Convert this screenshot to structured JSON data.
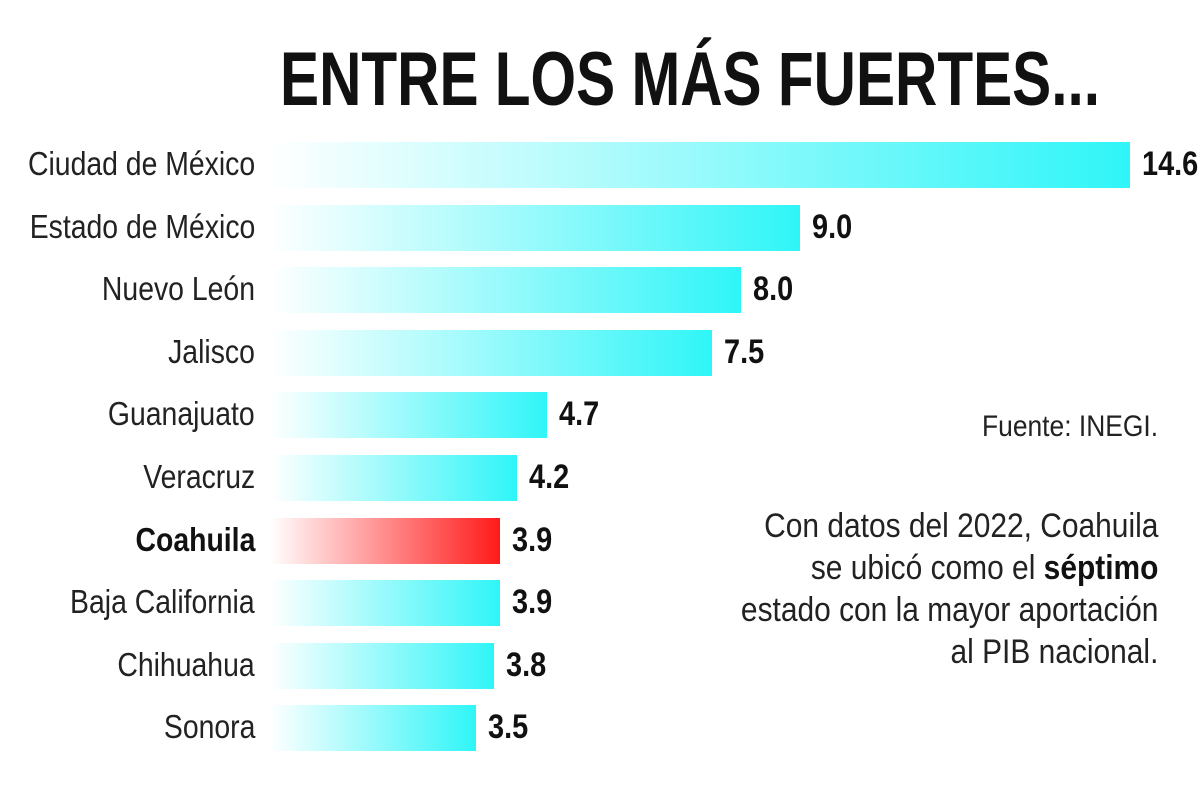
{
  "chart_data": {
    "type": "bar",
    "orientation": "horizontal",
    "title": "ENTRE LOS MÁS FUERTES...",
    "categories": [
      "Ciudad de México",
      "Estado de México",
      "Nuevo León",
      "Jalisco",
      "Guanajuato",
      "Veracruz",
      "Coahuila",
      "Baja California",
      "Chihuahua",
      "Sonora"
    ],
    "values": [
      14.6,
      9.0,
      8.0,
      7.5,
      4.7,
      4.2,
      3.9,
      3.9,
      3.8,
      3.5
    ],
    "value_labels": [
      "14.6",
      "9.0",
      "8.0",
      "7.5",
      "4.7",
      "4.2",
      "3.9",
      "3.9",
      "3.8",
      "3.5"
    ],
    "highlight": "Coahuila",
    "colors": {
      "bar": "#2ff5f8",
      "highlight": "#ff1a1a"
    },
    "grid": false,
    "source": "Fuente: INEGI.",
    "note": {
      "before": "Con datos del 2022, Coahuila",
      "line2_pre": "se ubicó como el ",
      "line2_bold": "séptimo",
      "line3": "estado con la mayor aportación",
      "line4": "al PIB nacional."
    }
  }
}
